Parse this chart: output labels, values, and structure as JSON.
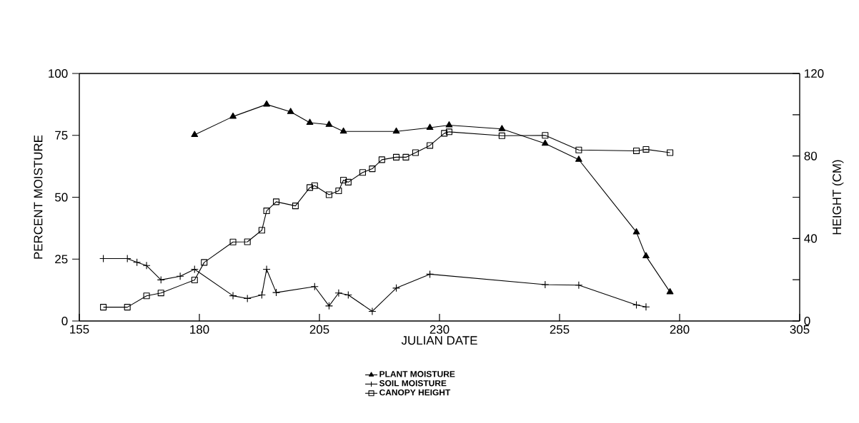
{
  "chart_data": {
    "type": "line",
    "xlabel": "JULIAN DATE",
    "ylabel": "PERCENT MOISTURE",
    "y2label": "HEIGHT (CM)",
    "xlim": [
      155,
      305
    ],
    "xticks": [
      155,
      180,
      205,
      230,
      255,
      280,
      305
    ],
    "ylim": [
      0,
      100
    ],
    "yticks": [
      0,
      25,
      50,
      75,
      100
    ],
    "y2lim": [
      0,
      120
    ],
    "y2ticks": [
      0,
      {
        "value": 20,
        "label": null
      },
      40,
      {
        "value": 60,
        "label": null
      },
      80,
      {
        "value": 100,
        "label": null
      },
      120
    ],
    "legend": "bottom",
    "series": [
      {
        "name": "PLANT MOISTURE",
        "color": "#000000",
        "marker": "triangle",
        "x": [
          179,
          187,
          194,
          199,
          203,
          207,
          210,
          221,
          228,
          232,
          243,
          252,
          259,
          271,
          273,
          278
        ],
        "values": [
          75.2,
          82.6,
          87.5,
          84.5,
          80.1,
          79.3,
          76.6,
          76.6,
          78.1,
          79.1,
          77.6,
          71.7,
          65.2,
          35.9,
          26.2,
          11.7
        ]
      },
      {
        "name": "SOIL MOISTURE",
        "color": "#000000",
        "marker": "cross",
        "x": [
          160,
          165,
          167,
          169,
          172,
          176,
          179,
          187,
          190,
          193,
          194,
          196,
          204,
          207,
          209,
          211,
          216,
          221,
          228,
          252,
          259,
          271,
          273
        ],
        "values": [
          25.2,
          25.2,
          23.7,
          22.4,
          16.6,
          18.1,
          20.9,
          10.2,
          9.1,
          10.5,
          20.9,
          11.5,
          13.9,
          6.1,
          11.3,
          10.5,
          3.9,
          13.3,
          18.9,
          14.7,
          14.5,
          6.5,
          5.7
        ]
      },
      {
        "name": "CANOPY HEIGHT",
        "color": "#000000",
        "marker": "square",
        "axis": "y2",
        "x": [
          160,
          165,
          169,
          172,
          179,
          181,
          187,
          190,
          193,
          194,
          196,
          200,
          203,
          204,
          207,
          209,
          210,
          211,
          214,
          216,
          218,
          221,
          223,
          225,
          228,
          231,
          232,
          243,
          252,
          259,
          271,
          273,
          278
        ],
        "values": [
          6.7,
          6.7,
          12.2,
          13.6,
          19.9,
          28.4,
          38.3,
          38.4,
          44.0,
          53.4,
          57.8,
          55.8,
          64.7,
          65.6,
          61.2,
          63.1,
          68.3,
          67.3,
          72.0,
          73.8,
          78.2,
          79.4,
          79.4,
          81.6,
          85.1,
          91.0,
          91.7,
          89.8,
          90.0,
          82.9,
          82.5,
          83.2,
          81.6
        ]
      }
    ]
  }
}
